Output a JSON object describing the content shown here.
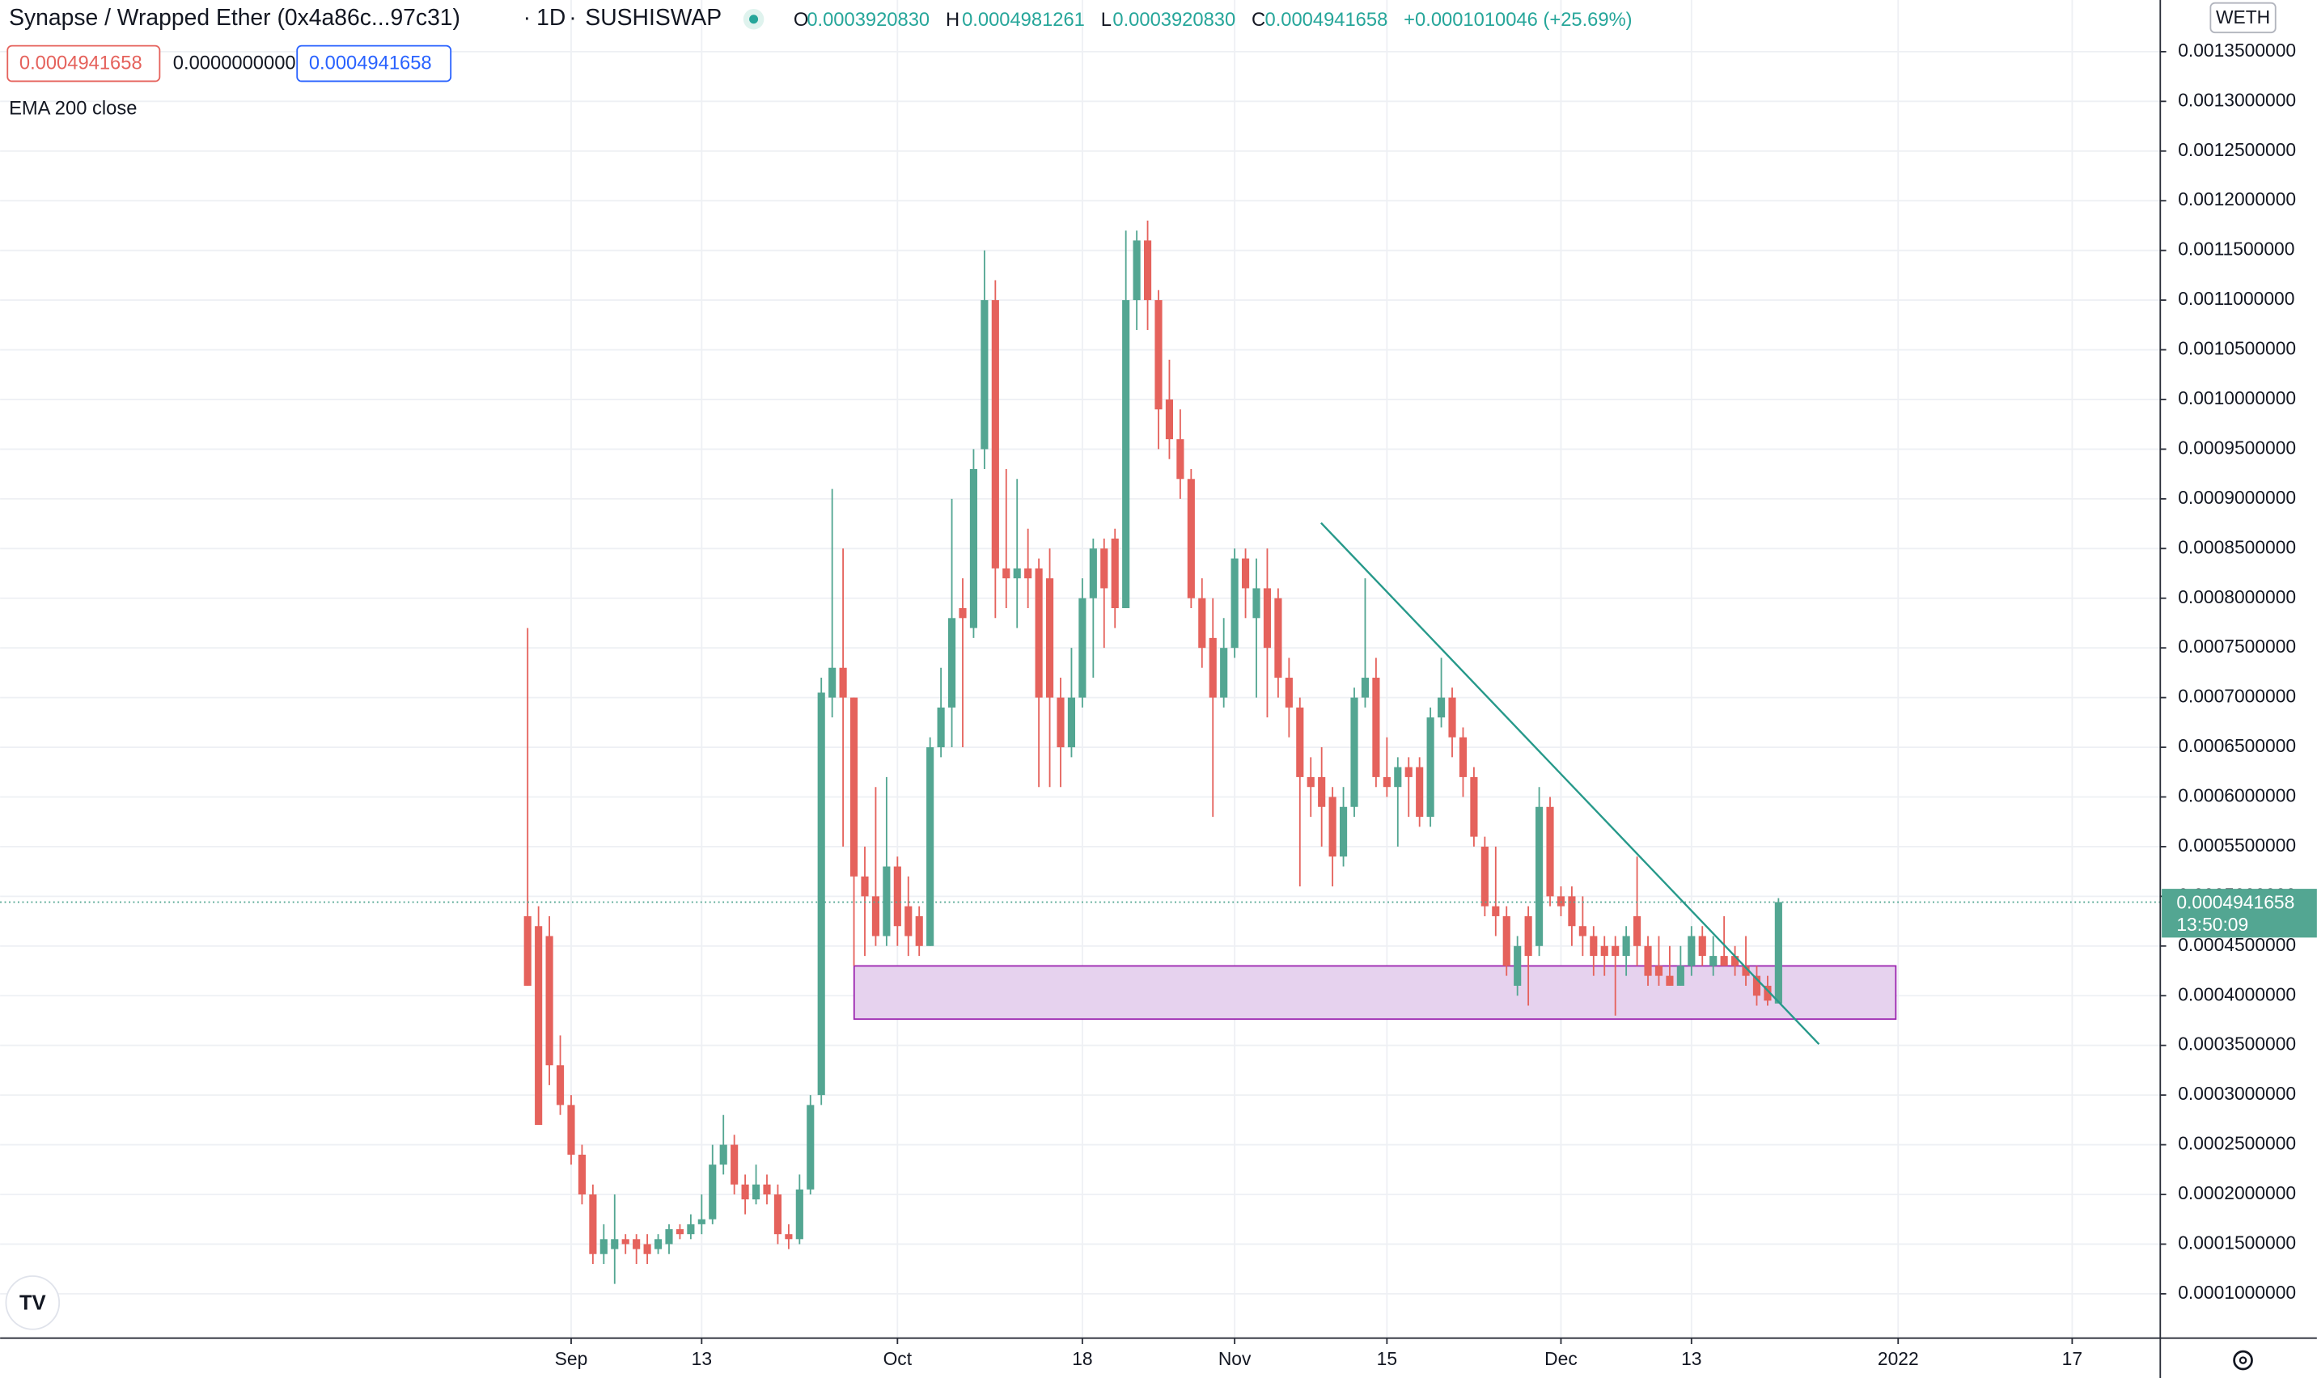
{
  "header": {
    "symbol": "Synapse / Wrapped Ether (0x4a86c...97c31)",
    "interval": "1D",
    "exchange": "SUSHISWAP",
    "o_label": "O",
    "open": "0.0003920830",
    "h_label": "H",
    "high": "0.0004981261",
    "l_label": "L",
    "low": "0.0003920830",
    "c_label": "C",
    "close": "0.0004941658",
    "change": "+0.0001010046 (+25.69%)",
    "inputs": [
      "0.0004941658",
      "0.0000000000",
      "0.0004941658"
    ],
    "indicator": "EMA 200 close"
  },
  "chart_data": {
    "type": "candlestick",
    "currency": "WETH",
    "price_tag": "0.0004941658",
    "countdown": "13:50:09",
    "up_color": "#53a692",
    "down_color": "#e5625c",
    "grid": true,
    "xlim": [
      -48.5,
      150.1
    ],
    "xticks": [
      {
        "value": 4,
        "label": "Sep"
      },
      {
        "value": 16,
        "label": "13"
      },
      {
        "value": 34,
        "label": "Oct"
      },
      {
        "value": 51,
        "label": "18"
      },
      {
        "value": 65,
        "label": "Nov"
      },
      {
        "value": 79,
        "label": "15"
      },
      {
        "value": 95,
        "label": "Dec"
      },
      {
        "value": 107,
        "label": "13"
      },
      {
        "value": 126,
        "label": "2022"
      },
      {
        "value": 142,
        "label": "17"
      }
    ],
    "ylim": [
      5.54e-05,
      0.001402
    ],
    "yticks": [
      {
        "value": 0.0001,
        "label": "0.0001000000"
      },
      {
        "value": 0.00015,
        "label": "0.0001500000"
      },
      {
        "value": 0.0002,
        "label": "0.0002000000"
      },
      {
        "value": 0.00025,
        "label": "0.0002500000"
      },
      {
        "value": 0.0003,
        "label": "0.0003000000"
      },
      {
        "value": 0.00035,
        "label": "0.0003500000"
      },
      {
        "value": 0.0004,
        "label": "0.0004000000"
      },
      {
        "value": 0.00045,
        "label": "0.0004500000"
      },
      {
        "value": 0.0005,
        "label": "0.0005000000"
      },
      {
        "value": 0.00055,
        "label": "0.0005500000"
      },
      {
        "value": 0.0006,
        "label": "0.0006000000"
      },
      {
        "value": 0.00065,
        "label": "0.0006500000"
      },
      {
        "value": 0.0007,
        "label": "0.0007000000"
      },
      {
        "value": 0.00075,
        "label": "0.0007500000"
      },
      {
        "value": 0.0008,
        "label": "0.0008000000"
      },
      {
        "value": 0.00085,
        "label": "0.0008500000"
      },
      {
        "value": 0.0009,
        "label": "0.0009000000"
      },
      {
        "value": 0.00095,
        "label": "0.0009500000"
      },
      {
        "value": 0.001,
        "label": "0.0010000000"
      },
      {
        "value": 0.00105,
        "label": "0.0010500000"
      },
      {
        "value": 0.0011,
        "label": "0.0011000000"
      },
      {
        "value": 0.00115,
        "label": "0.0011500000"
      },
      {
        "value": 0.0012,
        "label": "0.0012000000"
      },
      {
        "value": 0.00125,
        "label": "0.0012500000"
      },
      {
        "value": 0.0013,
        "label": "0.0013000000"
      },
      {
        "value": 0.00135,
        "label": "0.0013500000"
      }
    ],
    "open": [
      0.00048,
      0.00047,
      0.00046,
      0.00033,
      0.00029,
      0.00024,
      0.0002,
      0.00014,
      0.000145,
      0.000155,
      0.000155,
      0.00015,
      0.000145,
      0.00015,
      0.000165,
      0.00016,
      0.00017,
      0.000175,
      0.00023,
      0.00025,
      0.00021,
      0.000195,
      0.00021,
      0.0002,
      0.00016,
      0.000155,
      0.000205,
      0.0003,
      0.0007,
      0.00073,
      0.0007,
      0.00052,
      0.0005,
      0.00046,
      0.00053,
      0.00049,
      0.00048,
      0.00045,
      0.00065,
      0.00069,
      0.00079,
      0.00077,
      0.00095,
      0.0011,
      0.00083,
      0.00082,
      0.00083,
      0.00083,
      0.00082,
      0.0007,
      0.00065,
      0.0007,
      0.0008,
      0.00085,
      0.00086,
      0.00079,
      0.0011,
      0.00116,
      0.0011,
      0.001,
      0.00096,
      0.00092,
      0.0008,
      0.00076,
      0.0007,
      0.00075,
      0.00084,
      0.00078,
      0.00081,
      0.0008,
      0.00072,
      0.00069,
      0.00062,
      0.00062,
      0.0006,
      0.00054,
      0.00059,
      0.0007,
      0.00072,
      0.00062,
      0.00061,
      0.00063,
      0.00063,
      0.00058,
      0.00068,
      0.0007,
      0.00066,
      0.00062,
      0.00055,
      0.00049,
      0.00048,
      0.00041,
      0.00048,
      0.00045,
      0.00059,
      0.0005,
      0.0005,
      0.00047,
      0.00046,
      0.00045,
      0.00045,
      0.00044,
      0.00048,
      0.00045,
      0.00043,
      0.00042,
      0.00041,
      0.00043,
      0.00046,
      0.00043,
      0.00044,
      0.00044,
      0.00043,
      0.00042,
      0.00041,
      0.000392083
    ],
    "high": [
      0.00077,
      0.00049,
      0.00048,
      0.00036,
      0.0003,
      0.00025,
      0.00021,
      0.00017,
      0.0002,
      0.00016,
      0.00016,
      0.00016,
      0.00016,
      0.00017,
      0.00017,
      0.00018,
      0.0002,
      0.00025,
      0.00028,
      0.00026,
      0.00022,
      0.00023,
      0.00022,
      0.00021,
      0.00017,
      0.00022,
      0.0003,
      0.00072,
      0.00091,
      0.00085,
      0.0007,
      0.00055,
      0.00061,
      0.00062,
      0.00054,
      0.00052,
      0.00049,
      0.00066,
      0.00073,
      0.0009,
      0.00082,
      0.00095,
      0.00115,
      0.00112,
      0.00093,
      0.00092,
      0.00087,
      0.00084,
      0.00085,
      0.00072,
      0.00075,
      0.00082,
      0.00086,
      0.00086,
      0.00087,
      0.00117,
      0.00117,
      0.00118,
      0.00111,
      0.00104,
      0.00099,
      0.00093,
      0.00082,
      0.0008,
      0.00078,
      0.00085,
      0.00085,
      0.00084,
      0.00085,
      0.00081,
      0.00074,
      0.0007,
      0.00064,
      0.00065,
      0.00061,
      0.00061,
      0.00071,
      0.00082,
      0.00074,
      0.00066,
      0.00064,
      0.00064,
      0.00064,
      0.00069,
      0.00074,
      0.00071,
      0.00067,
      0.00063,
      0.00056,
      0.00055,
      0.00049,
      0.00046,
      0.00049,
      0.00061,
      0.0006,
      0.00051,
      0.00051,
      0.0005,
      0.00047,
      0.00046,
      0.00046,
      0.00047,
      0.00054,
      0.00046,
      0.00046,
      0.00045,
      0.00045,
      0.00047,
      0.00047,
      0.00046,
      0.00048,
      0.00045,
      0.00046,
      0.00043,
      0.00042,
      0.0004981261
    ],
    "low": [
      0.00041,
      0.00027,
      0.00031,
      0.00028,
      0.00023,
      0.00019,
      0.00013,
      0.00013,
      0.00011,
      0.00014,
      0.00013,
      0.00013,
      0.00014,
      0.00014,
      0.000155,
      0.000155,
      0.00016,
      0.00017,
      0.00022,
      0.0002,
      0.00018,
      0.00019,
      0.00019,
      0.00015,
      0.000145,
      0.00015,
      0.0002,
      0.00029,
      0.00068,
      0.00055,
      0.00043,
      0.00044,
      0.00045,
      0.00045,
      0.00045,
      0.00044,
      0.00044,
      0.00045,
      0.00064,
      0.00065,
      0.00065,
      0.00076,
      0.00093,
      0.00078,
      0.00079,
      0.00077,
      0.00079,
      0.00061,
      0.00061,
      0.00061,
      0.00064,
      0.00069,
      0.00072,
      0.00075,
      0.00077,
      0.00079,
      0.00107,
      0.00107,
      0.00095,
      0.00094,
      0.0009,
      0.00079,
      0.00073,
      0.00058,
      0.00069,
      0.00074,
      0.00078,
      0.0007,
      0.00068,
      0.0007,
      0.00066,
      0.00051,
      0.00058,
      0.00055,
      0.00051,
      0.00053,
      0.00058,
      0.00069,
      0.00061,
      0.0006,
      0.00055,
      0.00058,
      0.00057,
      0.00057,
      0.00067,
      0.00064,
      0.0006,
      0.00055,
      0.00048,
      0.00046,
      0.00042,
      0.0004,
      0.00039,
      0.00044,
      0.00049,
      0.00048,
      0.00045,
      0.00044,
      0.00042,
      0.00042,
      0.00038,
      0.00042,
      0.00043,
      0.00041,
      0.00041,
      0.00041,
      0.00041,
      0.00042,
      0.00043,
      0.00042,
      0.00043,
      0.00042,
      0.00041,
      0.00039,
      0.00039,
      0.000392083
    ],
    "close": [
      0.00041,
      0.00027,
      0.00033,
      0.00029,
      0.00024,
      0.0002,
      0.00014,
      0.000155,
      0.000155,
      0.00015,
      0.000145,
      0.00014,
      0.000155,
      0.000165,
      0.00016,
      0.00017,
      0.000175,
      0.00023,
      0.00025,
      0.00021,
      0.000195,
      0.00021,
      0.0002,
      0.00016,
      0.000155,
      0.000205,
      0.00029,
      0.000705,
      0.00073,
      0.0007,
      0.00052,
      0.0005,
      0.00046,
      0.00053,
      0.00047,
      0.00046,
      0.00045,
      0.00065,
      0.00069,
      0.00078,
      0.00078,
      0.00093,
      0.0011,
      0.00083,
      0.00082,
      0.00083,
      0.00082,
      0.0007,
      0.0007,
      0.00065,
      0.0007,
      0.0008,
      0.00085,
      0.00081,
      0.00079,
      0.0011,
      0.00116,
      0.0011,
      0.00099,
      0.00096,
      0.00092,
      0.0008,
      0.00075,
      0.0007,
      0.00075,
      0.00084,
      0.00081,
      0.00081,
      0.00075,
      0.00072,
      0.00069,
      0.00062,
      0.00061,
      0.00059,
      0.00054,
      0.00059,
      0.0007,
      0.00072,
      0.00062,
      0.00061,
      0.00063,
      0.00062,
      0.00058,
      0.00068,
      0.0007,
      0.00066,
      0.00062,
      0.00056,
      0.00049,
      0.00048,
      0.00043,
      0.00045,
      0.00044,
      0.00059,
      0.0005,
      0.00049,
      0.00047,
      0.00046,
      0.00044,
      0.00044,
      0.00044,
      0.00046,
      0.00045,
      0.00042,
      0.00042,
      0.00041,
      0.00043,
      0.00046,
      0.00044,
      0.00044,
      0.00043,
      0.00043,
      0.00042,
      0.0004,
      0.000395,
      0.0004941658
    ]
  }
}
